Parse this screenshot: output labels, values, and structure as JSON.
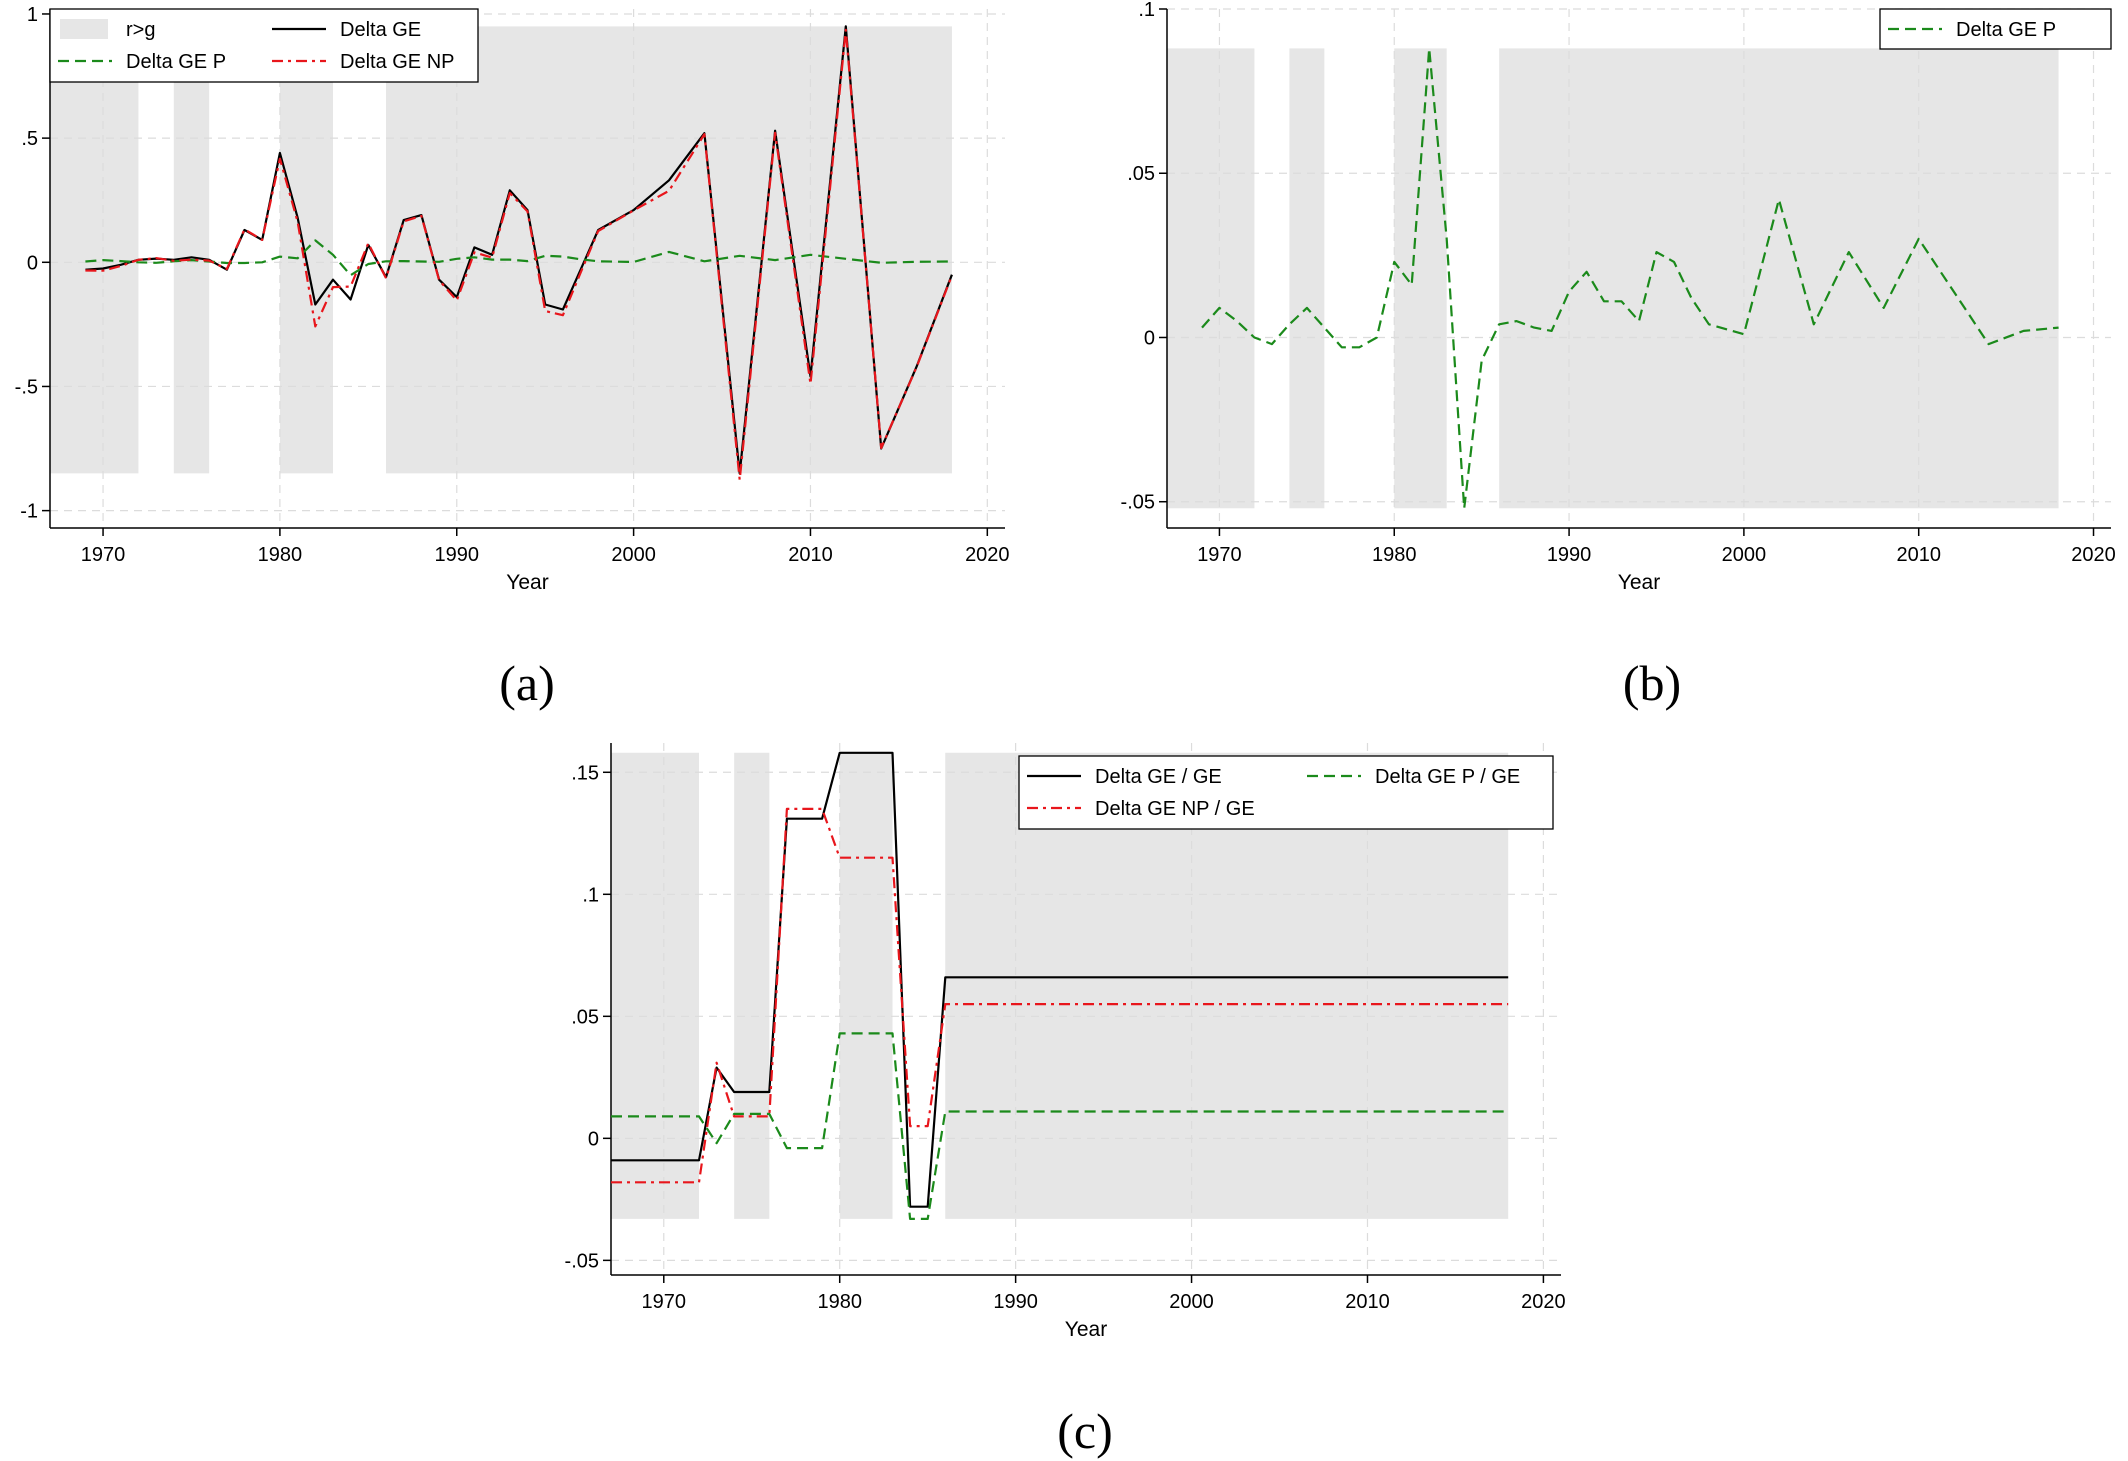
{
  "chart_data": [
    {
      "type": "line",
      "caption": "(a)",
      "xlabel": "Year",
      "ylabel": "",
      "xlim": [
        1967,
        2021
      ],
      "ylim": [
        -1.07,
        1.02
      ],
      "xticks": [
        1970,
        1980,
        1990,
        2000,
        2010,
        2020
      ],
      "yticks": [
        {
          "value": 1,
          "label": "1"
        },
        {
          "value": 0.5,
          "label": ".5"
        },
        {
          "value": 0,
          "label": "0"
        },
        {
          "value": -0.5,
          "label": "-.5"
        },
        {
          "value": -1,
          "label": "-1"
        }
      ],
      "grid": true,
      "legend_position": "top-left",
      "legend_columns": 2,
      "shaded_regions": {
        "name": "r>g",
        "color": "#e6e6e6",
        "ymin": -0.85,
        "ymax": 0.95,
        "intervals": [
          [
            1967,
            1972
          ],
          [
            1974,
            1976
          ],
          [
            1980,
            1983
          ],
          [
            1986,
            2018
          ]
        ]
      },
      "series": [
        {
          "name": "Delta GE",
          "color": "#000000",
          "style": "solid",
          "x": [
            1969,
            1970,
            1971,
            1972,
            1973,
            1974,
            1975,
            1976,
            1977,
            1978,
            1979,
            1980,
            1981,
            1982,
            1983,
            1984,
            1985,
            1986,
            1987,
            1988,
            1989,
            1990,
            1991,
            1992,
            1993,
            1994,
            1995,
            1996,
            1997,
            1998,
            2000,
            2002,
            2004,
            2006,
            2008,
            2010,
            2012,
            2014,
            2016,
            2018
          ],
          "values": [
            -0.03,
            -0.025,
            -0.01,
            0.01,
            0.015,
            0.01,
            0.02,
            0.01,
            -0.03,
            0.13,
            0.09,
            0.44,
            0.18,
            -0.17,
            -0.07,
            -0.15,
            0.07,
            -0.06,
            0.17,
            0.19,
            -0.07,
            -0.14,
            0.06,
            0.03,
            0.29,
            0.21,
            -0.17,
            -0.19,
            -0.03,
            0.13,
            0.21,
            0.33,
            0.52,
            -0.85,
            0.53,
            -0.46,
            0.95,
            -0.75,
            -0.42,
            -0.05
          ]
        },
        {
          "name": "Delta GE P",
          "color": "#1b8a1b",
          "style": "dashed",
          "x": [
            1969,
            1970,
            1971,
            1972,
            1973,
            1974,
            1975,
            1976,
            1977,
            1978,
            1979,
            1980,
            1981,
            1982,
            1983,
            1984,
            1985,
            1986,
            1987,
            1988,
            1989,
            1990,
            1991,
            1992,
            1993,
            1994,
            1995,
            1996,
            1997,
            1998,
            2000,
            2002,
            2004,
            2006,
            2008,
            2010,
            2012,
            2014,
            2016,
            2018
          ],
          "values": [
            0.003,
            0.009,
            0.005,
            0.0,
            -0.002,
            0.004,
            0.009,
            0.003,
            -0.003,
            -0.003,
            0.0,
            0.023,
            0.016,
            0.088,
            0.03,
            -0.052,
            -0.007,
            0.004,
            0.005,
            0.003,
            0.002,
            0.014,
            0.02,
            0.011,
            0.011,
            0.005,
            0.026,
            0.023,
            0.012,
            0.004,
            0.001,
            0.042,
            0.004,
            0.026,
            0.009,
            0.03,
            0.014,
            -0.002,
            0.002,
            0.003
          ]
        },
        {
          "name": "Delta GE NP",
          "color": "#e8161c",
          "style": "dashdot",
          "x": [
            1969,
            1970,
            1971,
            1972,
            1973,
            1974,
            1975,
            1976,
            1977,
            1978,
            1979,
            1980,
            1981,
            1982,
            1983,
            1984,
            1985,
            1986,
            1987,
            1988,
            1989,
            1990,
            1991,
            1992,
            1993,
            1994,
            1995,
            1996,
            1997,
            1998,
            2000,
            2002,
            2004,
            2006,
            2008,
            2010,
            2012,
            2014,
            2016,
            2018
          ],
          "values": [
            -0.033,
            -0.034,
            -0.015,
            0.01,
            0.017,
            0.006,
            0.011,
            0.007,
            -0.027,
            0.133,
            0.09,
            0.417,
            0.164,
            -0.258,
            -0.1,
            -0.098,
            0.077,
            -0.064,
            0.165,
            0.187,
            -0.072,
            -0.154,
            0.04,
            0.019,
            0.279,
            0.205,
            -0.196,
            -0.213,
            -0.042,
            0.126,
            0.209,
            0.288,
            0.516,
            -0.876,
            0.521,
            -0.49,
            0.936,
            -0.748,
            -0.422,
            -0.053
          ]
        }
      ]
    },
    {
      "type": "line",
      "caption": "(b)",
      "xlabel": "Year",
      "ylabel": "",
      "xlim": [
        1967,
        2021
      ],
      "ylim": [
        -0.058,
        0.1
      ],
      "xticks": [
        1970,
        1980,
        1990,
        2000,
        2010,
        2020
      ],
      "yticks": [
        {
          "value": 0.1,
          "label": ".1"
        },
        {
          "value": 0.05,
          "label": ".05"
        },
        {
          "value": 0,
          "label": "0"
        },
        {
          "value": -0.05,
          "label": "-.05"
        }
      ],
      "grid": true,
      "legend_position": "top-right",
      "legend_columns": 1,
      "shaded_regions": {
        "color": "#e6e6e6",
        "ymin": -0.052,
        "ymax": 0.088,
        "intervals": [
          [
            1967,
            1972
          ],
          [
            1974,
            1976
          ],
          [
            1980,
            1983
          ],
          [
            1986,
            2018
          ]
        ]
      },
      "series": [
        {
          "name": "Delta GE P",
          "color": "#1b8a1b",
          "style": "dashed",
          "x": [
            1969,
            1970,
            1971,
            1972,
            1973,
            1974,
            1975,
            1976,
            1977,
            1978,
            1979,
            1980,
            1981,
            1982,
            1983,
            1984,
            1985,
            1986,
            1987,
            1988,
            1989,
            1990,
            1991,
            1992,
            1993,
            1994,
            1995,
            1996,
            1997,
            1998,
            2000,
            2002,
            2004,
            2006,
            2008,
            2010,
            2012,
            2014,
            2016,
            2018
          ],
          "values": [
            0.003,
            0.009,
            0.005,
            0.0,
            -0.002,
            0.004,
            0.009,
            0.003,
            -0.003,
            -0.003,
            0.0,
            0.023,
            0.016,
            0.088,
            0.03,
            -0.052,
            -0.007,
            0.004,
            0.005,
            0.003,
            0.002,
            0.014,
            0.02,
            0.011,
            0.011,
            0.005,
            0.026,
            0.023,
            0.012,
            0.004,
            0.001,
            0.042,
            0.004,
            0.026,
            0.009,
            0.03,
            0.014,
            -0.002,
            0.002,
            0.003
          ]
        }
      ]
    },
    {
      "type": "line",
      "caption": "(c)",
      "xlabel": "Year",
      "ylabel": "",
      "xlim": [
        1967,
        2021
      ],
      "ylim": [
        -0.056,
        0.162
      ],
      "xticks": [
        1970,
        1980,
        1990,
        2000,
        2010,
        2020
      ],
      "yticks": [
        {
          "value": 0.15,
          "label": ".15"
        },
        {
          "value": 0.1,
          "label": ".1"
        },
        {
          "value": 0.05,
          "label": ".05"
        },
        {
          "value": 0,
          "label": "0"
        },
        {
          "value": -0.05,
          "label": "-.05"
        }
      ],
      "grid": true,
      "legend_position": "top-right",
      "legend_columns": 2,
      "shaded_regions": {
        "color": "#e6e6e6",
        "ymin": -0.033,
        "ymax": 0.158,
        "intervals": [
          [
            1967,
            1972
          ],
          [
            1974,
            1976
          ],
          [
            1980,
            1983
          ],
          [
            1986,
            2018
          ]
        ]
      },
      "series": [
        {
          "name": "Delta GE / GE",
          "color": "#000000",
          "style": "solid",
          "x": [
            1967,
            1972,
            1973,
            1974,
            1976,
            1977,
            1979,
            1980,
            1983,
            1984,
            1985,
            1986,
            2018
          ],
          "values": [
            -0.009,
            -0.009,
            0.029,
            0.019,
            0.019,
            0.131,
            0.131,
            0.158,
            0.158,
            -0.028,
            -0.028,
            0.066,
            0.066
          ]
        },
        {
          "name": "Delta GE P / GE",
          "color": "#1b8a1b",
          "style": "dashed",
          "x": [
            1967,
            1972,
            1973,
            1974,
            1976,
            1977,
            1979,
            1980,
            1983,
            1984,
            1985,
            1986,
            2018
          ],
          "values": [
            0.009,
            0.009,
            -0.002,
            0.01,
            0.01,
            -0.004,
            -0.004,
            0.043,
            0.043,
            -0.033,
            -0.033,
            0.011,
            0.011
          ]
        },
        {
          "name": "Delta GE NP / GE",
          "color": "#e8161c",
          "style": "dashdot",
          "x": [
            1967,
            1972,
            1973,
            1974,
            1976,
            1977,
            1979,
            1980,
            1983,
            1984,
            1985,
            1986,
            2018
          ],
          "values": [
            -0.018,
            -0.018,
            0.031,
            0.009,
            0.009,
            0.135,
            0.135,
            0.115,
            0.115,
            0.005,
            0.005,
            0.055,
            0.055
          ]
        }
      ]
    }
  ]
}
